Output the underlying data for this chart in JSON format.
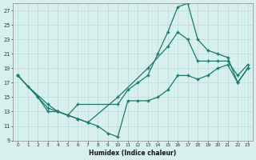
{
  "xlabel": "Humidex (Indice chaleur)",
  "bg_color": "#d8f0ed",
  "grid_color": "#b8ddd8",
  "line_color": "#1a7a6e",
  "xlim": [
    -0.5,
    23.5
  ],
  "ylim": [
    9,
    28
  ],
  "yticks": [
    9,
    11,
    13,
    15,
    17,
    19,
    21,
    23,
    25,
    27
  ],
  "xticks": [
    0,
    1,
    2,
    3,
    4,
    5,
    6,
    7,
    8,
    9,
    10,
    11,
    12,
    13,
    14,
    15,
    16,
    17,
    18,
    19,
    20,
    21,
    22,
    23
  ],
  "series": {
    "line1_x": [
      0,
      1,
      3,
      4,
      5,
      6,
      10,
      11,
      12,
      13,
      14,
      15,
      16,
      17,
      18,
      19,
      20,
      21,
      22,
      23
    ],
    "line1_y": [
      18,
      16.5,
      14,
      13,
      12.5,
      14,
      14,
      16,
      17,
      18,
      21,
      24,
      27.5,
      28,
      23,
      21.5,
      21,
      20.5,
      17,
      19
    ],
    "line2_x": [
      0,
      2,
      3,
      4,
      5,
      6,
      7,
      10,
      13,
      15,
      16,
      17,
      18,
      19,
      20,
      21,
      22,
      23
    ],
    "line2_y": [
      18,
      15,
      13,
      13,
      12.5,
      12,
      11.5,
      15,
      19,
      22,
      24,
      23,
      20,
      20,
      20,
      20,
      18,
      19.5
    ],
    "line3_x": [
      0,
      2,
      3,
      4,
      5,
      6,
      7,
      8,
      9,
      10,
      11,
      12,
      13,
      14,
      15,
      16,
      17,
      18,
      19,
      20,
      21,
      22,
      23
    ],
    "line3_y": [
      18,
      15,
      13.5,
      13,
      12.5,
      12,
      11.5,
      11,
      10,
      9.5,
      14.5,
      14.5,
      14.5,
      15,
      16,
      18,
      18,
      17.5,
      18,
      19,
      19.5,
      17,
      19
    ]
  }
}
